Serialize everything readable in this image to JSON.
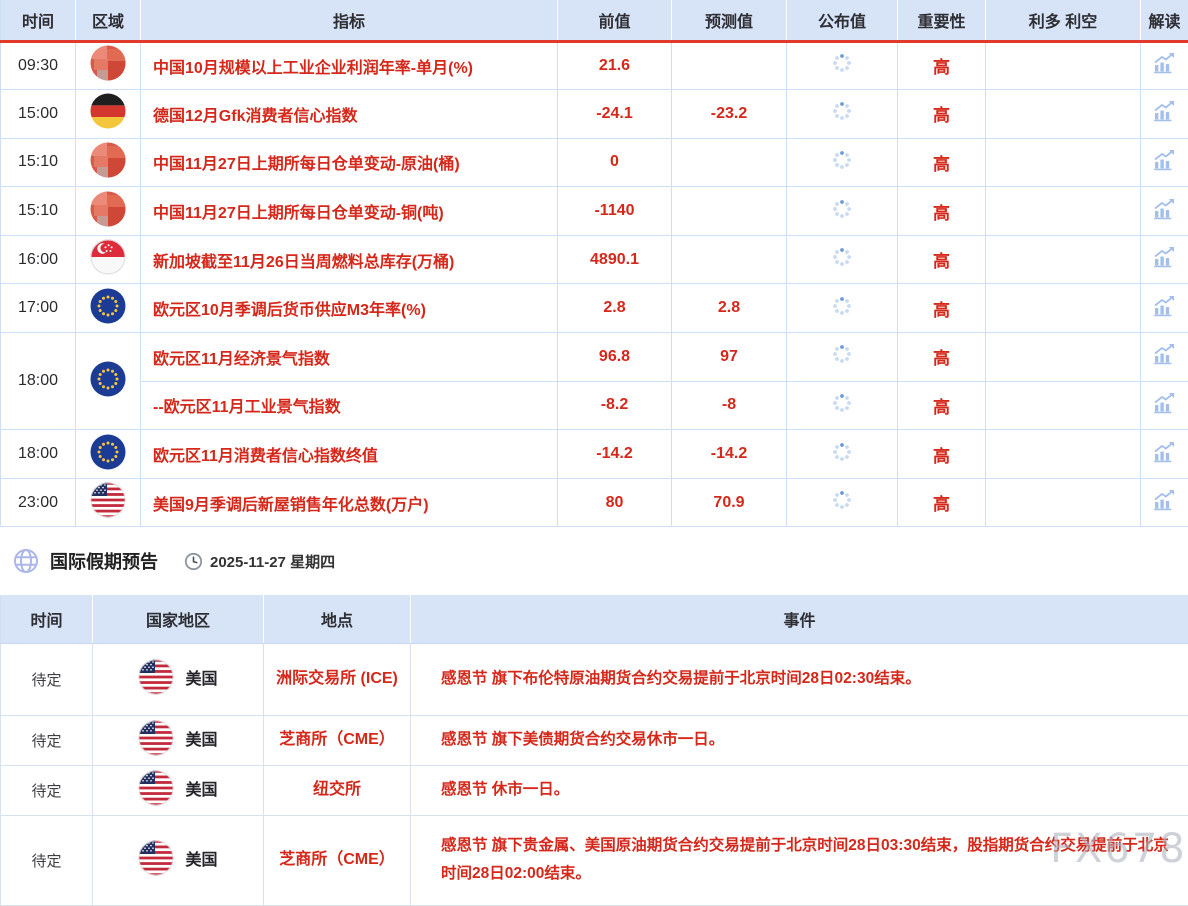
{
  "economic_table": {
    "headers": {
      "time": "时间",
      "region": "区域",
      "indicator": "指标",
      "previous": "前值",
      "forecast": "预测值",
      "actual": "公布值",
      "importance": "重要性",
      "bull_bear": "利多 利空",
      "interpret": "解读"
    },
    "rows": [
      {
        "time": "09:30",
        "flag": "china-blurred",
        "indicator": "中国10月规模以上工业企业利润年率-单月(%)",
        "previous": "21.6",
        "forecast": "",
        "actual": "loading",
        "importance": "高"
      },
      {
        "time": "15:00",
        "flag": "germany",
        "indicator": "德国12月Gfk消费者信心指数",
        "previous": "-24.1",
        "forecast": "-23.2",
        "actual": "loading",
        "importance": "高"
      },
      {
        "time": "15:10",
        "flag": "china-blurred",
        "indicator": "中国11月27日上期所每日仓单变动-原油(桶)",
        "previous": "0",
        "forecast": "",
        "actual": "loading",
        "importance": "高"
      },
      {
        "time": "15:10",
        "flag": "china-blurred",
        "indicator": "中国11月27日上期所每日仓单变动-铜(吨)",
        "previous": "-1140",
        "forecast": "",
        "actual": "loading",
        "importance": "高"
      },
      {
        "time": "16:00",
        "flag": "singapore",
        "indicator": "新加坡截至11月26日当周燃料总库存(万桶)",
        "previous": "4890.1",
        "forecast": "",
        "actual": "loading",
        "importance": "高"
      },
      {
        "time": "17:00",
        "flag": "eu",
        "indicator": "欧元区10月季调后货币供应M3年率(%)",
        "previous": "2.8",
        "forecast": "2.8",
        "actual": "loading",
        "importance": "高"
      },
      {
        "time": "18:00",
        "flag": "eu",
        "indicator": "欧元区11月经济景气指数",
        "previous": "96.8",
        "forecast": "97",
        "actual": "loading",
        "importance": "高"
      },
      {
        "time": "",
        "flag": "",
        "indicator": "--欧元区11月工业景气指数",
        "previous": "-8.2",
        "forecast": "-8",
        "actual": "loading",
        "importance": "高"
      },
      {
        "time": "18:00",
        "flag": "eu",
        "indicator": "欧元区11月消费者信心指数终值",
        "previous": "-14.2",
        "forecast": "-14.2",
        "actual": "loading",
        "importance": "高"
      },
      {
        "time": "23:00",
        "flag": "us",
        "indicator": "美国9月季调后新屋销售年化总数(万户)",
        "previous": "80",
        "forecast": "70.9",
        "actual": "loading",
        "importance": "高"
      }
    ]
  },
  "holiday_section": {
    "title": "国际假期预告",
    "date": "2025-11-27 星期四",
    "table": {
      "headers": {
        "time": "时间",
        "country": "国家地区",
        "location": "地点",
        "event": "事件"
      },
      "rows": [
        {
          "time": "待定",
          "flag": "us",
          "country": "美国",
          "location": "洲际交易所 (ICE)",
          "event": "感恩节 旗下布伦特原油期货合约交易提前于北京时间28日02:30结束。"
        },
        {
          "time": "待定",
          "flag": "us",
          "country": "美国",
          "location": "芝商所（CME）",
          "event": "感恩节 旗下美债期货合约交易休市一日。"
        },
        {
          "time": "待定",
          "flag": "us",
          "country": "美国",
          "location": "纽交所",
          "event": "感恩节 休市一日。"
        },
        {
          "time": "待定",
          "flag": "us",
          "country": "美国",
          "location": "芝商所（CME）",
          "event": "感恩节 旗下贵金属、美国原油期货合约交易提前于北京时间28日03:30结束，股指期货合约交易提前于北京时间28日02:00结束。"
        }
      ]
    }
  },
  "watermark": "FX678",
  "colors": {
    "accent_red": "#d5281b",
    "header_line_red": "#e13a2b",
    "header_bg_blue": "#d7e4f8",
    "border_blue": "#cfe0f4",
    "icon_blue": "#a4c0ea"
  }
}
